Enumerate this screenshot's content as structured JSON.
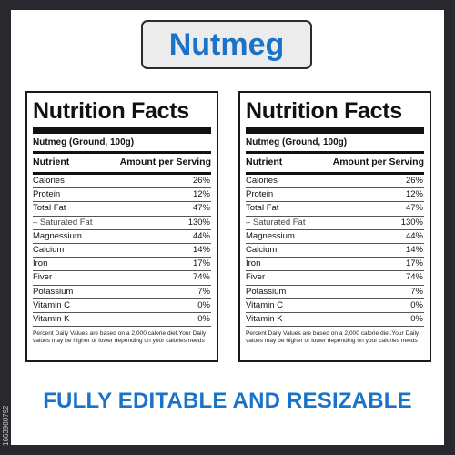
{
  "title": "Nutmeg",
  "footer": "FULLY EDITABLE AND RESIZABLE",
  "watermark": "1663980792",
  "colors": {
    "accent": "#1a73c8",
    "background": "#27292e",
    "title_box": "#ececec"
  },
  "labels": [
    {
      "heading": "Nutrition Facts",
      "product": "Nutmeg (Ground, 100g)",
      "col_nutrient": "Nutrient",
      "col_amount": "Amount per Serving",
      "rows": [
        {
          "name": "Calories",
          "value": "26%"
        },
        {
          "name": "Protein",
          "value": "12%"
        },
        {
          "name": "Total Fat",
          "value": "47%"
        },
        {
          "name": "– Saturated Fat",
          "value": "130%"
        },
        {
          "name": "Magnessium",
          "value": "44%"
        },
        {
          "name": "Calcium",
          "value": "14%"
        },
        {
          "name": "Iron",
          "value": "17%"
        },
        {
          "name": "Fiver",
          "value": "74%"
        },
        {
          "name": "Potassium",
          "value": "7%"
        },
        {
          "name": "Vitamin C",
          "value": "0%"
        },
        {
          "name": "Vitamin K",
          "value": "0%"
        }
      ],
      "footnote": "Percent Daily Values are based on a 2,000 calorie diet.Your Daily values may be higher or lower depending on your calories needs"
    },
    {
      "heading": "Nutrition Facts",
      "product": "Nutmeg (Ground, 100g)",
      "col_nutrient": "Nutrient",
      "col_amount": "Amount per Serving",
      "rows": [
        {
          "name": "Calories",
          "value": "26%"
        },
        {
          "name": "Protein",
          "value": "12%"
        },
        {
          "name": "Total Fat",
          "value": "47%"
        },
        {
          "name": "– Saturated Fat",
          "value": "130%"
        },
        {
          "name": "Magnessium",
          "value": "44%"
        },
        {
          "name": "Calcium",
          "value": "14%"
        },
        {
          "name": "Iron",
          "value": "17%"
        },
        {
          "name": "Fiver",
          "value": "74%"
        },
        {
          "name": "Potassium",
          "value": "7%"
        },
        {
          "name": "Vitamin C",
          "value": "0%"
        },
        {
          "name": "Vitamin K",
          "value": "0%"
        }
      ],
      "footnote": "Percent Daily Values are based on a 2,000 calorie diet.Your Daily values may be higher or lower depending on your calories needs"
    }
  ]
}
